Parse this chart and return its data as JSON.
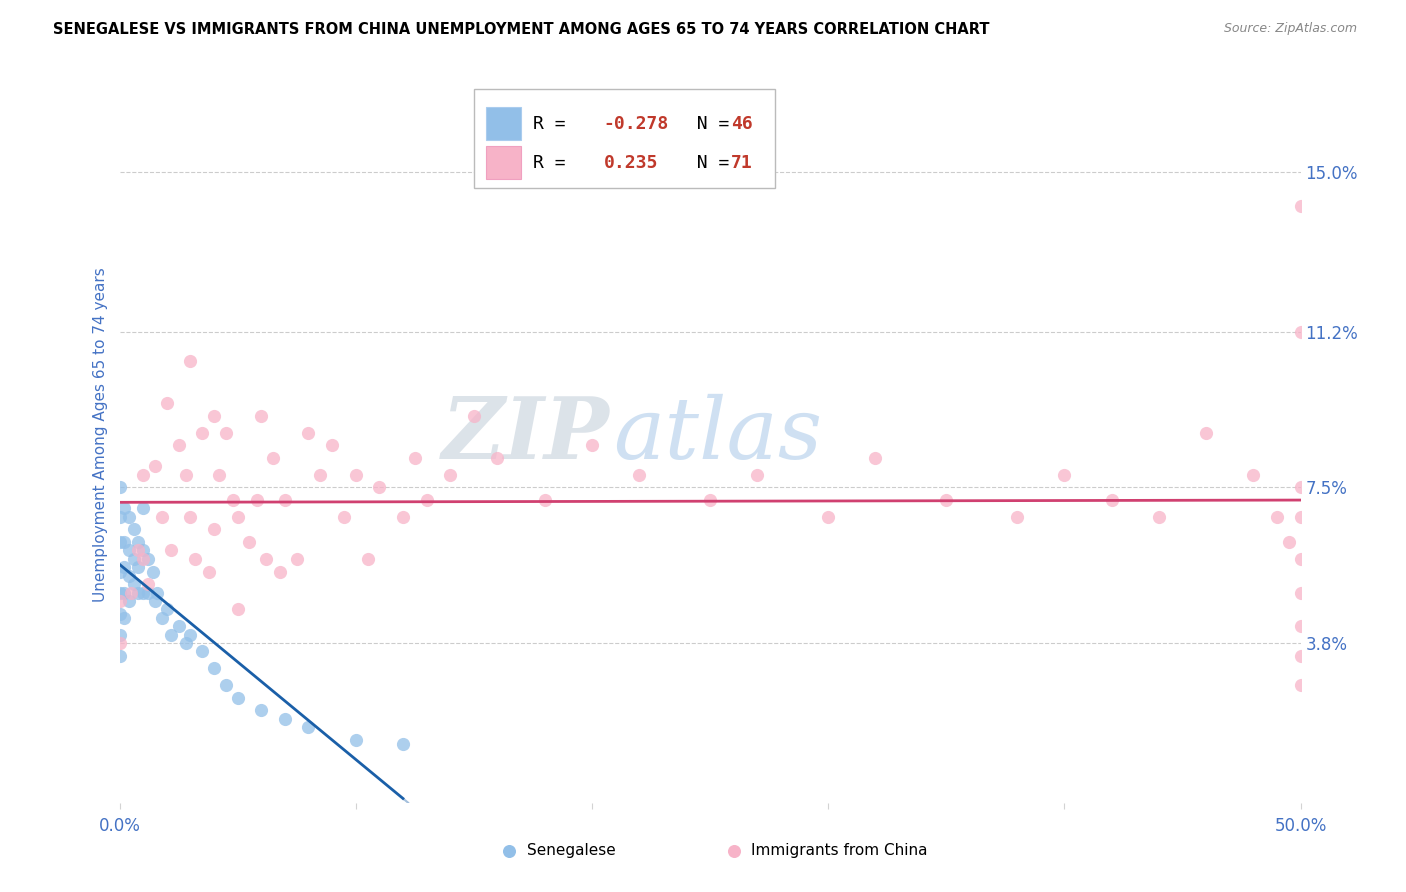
{
  "title": "SENEGALESE VS IMMIGRANTS FROM CHINA UNEMPLOYMENT AMONG AGES 65 TO 74 YEARS CORRELATION CHART",
  "source": "Source: ZipAtlas.com",
  "ylabel": "Unemployment Among Ages 65 to 74 years",
  "xlim": [
    0.0,
    0.5
  ],
  "ylim": [
    0.0,
    0.175
  ],
  "xtick_vals": [
    0.0,
    0.1,
    0.2,
    0.3,
    0.4,
    0.5
  ],
  "xticklabels": [
    "0.0%",
    "",
    "",
    "",
    "",
    "50.0%"
  ],
  "ytick_vals": [
    0.038,
    0.075,
    0.112,
    0.15
  ],
  "ytick_labels": [
    "3.8%",
    "7.5%",
    "11.2%",
    "15.0%"
  ],
  "R1": -0.278,
  "N1": 46,
  "R2": 0.235,
  "N2": 71,
  "color_blue": "#92bfe8",
  "color_pink": "#f7b3c8",
  "color_trend_blue": "#1a5fa8",
  "color_trend_pink": "#d04070",
  "watermark_zip": "ZIP",
  "watermark_atlas": "atlas",
  "blue_x": [
    0.0,
    0.0,
    0.0,
    0.0,
    0.0,
    0.0,
    0.0,
    0.0,
    0.002,
    0.002,
    0.002,
    0.002,
    0.002,
    0.004,
    0.004,
    0.004,
    0.004,
    0.006,
    0.006,
    0.006,
    0.008,
    0.008,
    0.008,
    0.01,
    0.01,
    0.01,
    0.012,
    0.012,
    0.014,
    0.015,
    0.016,
    0.018,
    0.02,
    0.022,
    0.025,
    0.028,
    0.03,
    0.035,
    0.04,
    0.045,
    0.05,
    0.06,
    0.07,
    0.08,
    0.1,
    0.12
  ],
  "blue_y": [
    0.075,
    0.068,
    0.062,
    0.055,
    0.05,
    0.045,
    0.04,
    0.035,
    0.07,
    0.062,
    0.056,
    0.05,
    0.044,
    0.068,
    0.06,
    0.054,
    0.048,
    0.065,
    0.058,
    0.052,
    0.062,
    0.056,
    0.05,
    0.07,
    0.06,
    0.05,
    0.058,
    0.05,
    0.055,
    0.048,
    0.05,
    0.044,
    0.046,
    0.04,
    0.042,
    0.038,
    0.04,
    0.036,
    0.032,
    0.028,
    0.025,
    0.022,
    0.02,
    0.018,
    0.015,
    0.014
  ],
  "pink_x": [
    0.0,
    0.0,
    0.005,
    0.008,
    0.01,
    0.01,
    0.012,
    0.015,
    0.018,
    0.02,
    0.022,
    0.025,
    0.028,
    0.03,
    0.03,
    0.032,
    0.035,
    0.038,
    0.04,
    0.04,
    0.042,
    0.045,
    0.048,
    0.05,
    0.05,
    0.055,
    0.058,
    0.06,
    0.062,
    0.065,
    0.068,
    0.07,
    0.075,
    0.08,
    0.085,
    0.09,
    0.095,
    0.1,
    0.105,
    0.11,
    0.12,
    0.125,
    0.13,
    0.14,
    0.15,
    0.16,
    0.18,
    0.2,
    0.22,
    0.25,
    0.27,
    0.3,
    0.32,
    0.35,
    0.38,
    0.4,
    0.42,
    0.44,
    0.46,
    0.48,
    0.49,
    0.495,
    0.5,
    0.5,
    0.5,
    0.5,
    0.5,
    0.5,
    0.5,
    0.5,
    0.5
  ],
  "pink_y": [
    0.048,
    0.038,
    0.05,
    0.06,
    0.078,
    0.058,
    0.052,
    0.08,
    0.068,
    0.095,
    0.06,
    0.085,
    0.078,
    0.105,
    0.068,
    0.058,
    0.088,
    0.055,
    0.092,
    0.065,
    0.078,
    0.088,
    0.072,
    0.068,
    0.046,
    0.062,
    0.072,
    0.092,
    0.058,
    0.082,
    0.055,
    0.072,
    0.058,
    0.088,
    0.078,
    0.085,
    0.068,
    0.078,
    0.058,
    0.075,
    0.068,
    0.082,
    0.072,
    0.078,
    0.092,
    0.082,
    0.072,
    0.085,
    0.078,
    0.072,
    0.078,
    0.068,
    0.082,
    0.072,
    0.068,
    0.078,
    0.072,
    0.068,
    0.088,
    0.078,
    0.068,
    0.062,
    0.142,
    0.112,
    0.075,
    0.068,
    0.058,
    0.05,
    0.042,
    0.035,
    0.028
  ]
}
